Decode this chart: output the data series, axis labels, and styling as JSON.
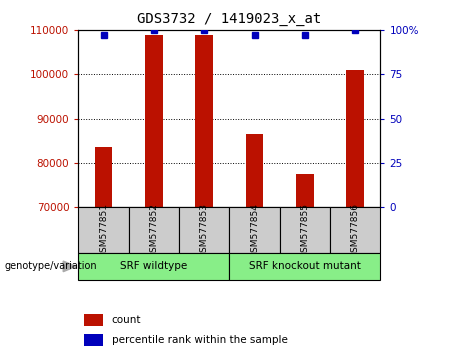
{
  "title": "GDS3732 / 1419023_x_at",
  "samples": [
    "GSM577851",
    "GSM577852",
    "GSM577853",
    "GSM577854",
    "GSM577855",
    "GSM577856"
  ],
  "counts": [
    83500,
    109000,
    109000,
    86500,
    77500,
    101000
  ],
  "percentiles": [
    97,
    100,
    100,
    97,
    97,
    100
  ],
  "ylim_left": [
    70000,
    110000
  ],
  "ylim_right": [
    0,
    100
  ],
  "yticks_left": [
    70000,
    80000,
    90000,
    100000,
    110000
  ],
  "yticks_right": [
    0,
    25,
    50,
    75,
    100
  ],
  "bar_color": "#bb1100",
  "dot_color": "#0000bb",
  "groups": [
    {
      "label": "SRF wildtype",
      "indices": [
        0,
        1,
        2
      ],
      "color": "#88ee88"
    },
    {
      "label": "SRF knockout mutant",
      "indices": [
        3,
        4,
        5
      ],
      "color": "#88ee88"
    }
  ],
  "legend_count_label": "count",
  "legend_percentile_label": "percentile rank within the sample",
  "genotype_label": "genotype/variation"
}
